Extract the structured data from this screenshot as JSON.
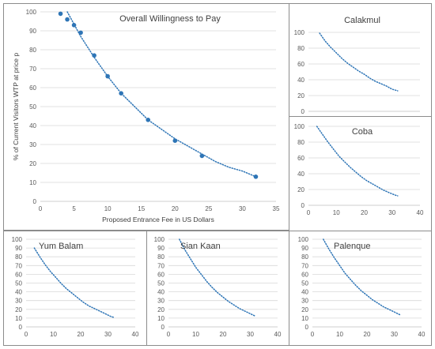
{
  "chart_data": [
    {
      "id": "overall",
      "type": "scatter",
      "title": "Overall Willingness to Pay",
      "xlabel": "Proposed Entrance Fee in US Dollars",
      "ylabel": "% of Current Visitors WTP at price p",
      "xlim": [
        0,
        35
      ],
      "ylim": [
        0,
        100
      ],
      "xticks": [
        0,
        5,
        10,
        15,
        20,
        25,
        30,
        35
      ],
      "yticks": [
        0,
        10,
        20,
        30,
        40,
        50,
        60,
        70,
        80,
        90,
        100
      ],
      "grid": true,
      "x": [
        3,
        4,
        5,
        6,
        8,
        10,
        12,
        16,
        20,
        24,
        32
      ],
      "y": [
        99,
        96,
        93,
        89,
        77,
        66,
        57,
        43,
        32,
        24,
        13
      ],
      "trend": [
        [
          4,
          100
        ],
        [
          6,
          87
        ],
        [
          8,
          76
        ],
        [
          10,
          66
        ],
        [
          12,
          57
        ],
        [
          14,
          50
        ],
        [
          16,
          43
        ],
        [
          18,
          38
        ],
        [
          20,
          33
        ],
        [
          22,
          29
        ],
        [
          24,
          25
        ],
        [
          26,
          21
        ],
        [
          28,
          18
        ],
        [
          30,
          16
        ],
        [
          32,
          13
        ]
      ]
    },
    {
      "id": "calakmul",
      "type": "line",
      "title": "Calakmul",
      "xlim": [
        0,
        40
      ],
      "ylim": [
        0,
        100
      ],
      "xticks": [
        0,
        10,
        20,
        30,
        40
      ],
      "yticks": [
        0,
        20,
        40,
        60,
        80,
        100
      ],
      "grid": true,
      "trend": [
        [
          4,
          99
        ],
        [
          6,
          89
        ],
        [
          8,
          81
        ],
        [
          10,
          74
        ],
        [
          12,
          67
        ],
        [
          14,
          61
        ],
        [
          16,
          56
        ],
        [
          18,
          51
        ],
        [
          20,
          47
        ],
        [
          22,
          42
        ],
        [
          24,
          38
        ],
        [
          26,
          35
        ],
        [
          28,
          32
        ],
        [
          30,
          28
        ],
        [
          32,
          26
        ]
      ]
    },
    {
      "id": "coba",
      "type": "line",
      "title": "Coba",
      "xlim": [
        0,
        40
      ],
      "ylim": [
        0,
        100
      ],
      "xticks": [
        0,
        10,
        20,
        30,
        40
      ],
      "yticks": [
        0,
        20,
        40,
        60,
        80,
        100
      ],
      "grid": true,
      "trend": [
        [
          3,
          100
        ],
        [
          5,
          90
        ],
        [
          7,
          80
        ],
        [
          9,
          71
        ],
        [
          11,
          62
        ],
        [
          13,
          55
        ],
        [
          15,
          48
        ],
        [
          17,
          42
        ],
        [
          19,
          36
        ],
        [
          21,
          31
        ],
        [
          23,
          27
        ],
        [
          25,
          23
        ],
        [
          27,
          19
        ],
        [
          29,
          16
        ],
        [
          31,
          13
        ],
        [
          32,
          12
        ]
      ]
    },
    {
      "id": "yumbalam",
      "type": "line",
      "title": "Yum Balam",
      "xlim": [
        0,
        40
      ],
      "ylim": [
        0,
        100
      ],
      "xticks": [
        0,
        10,
        20,
        30,
        40
      ],
      "yticks": [
        0,
        10,
        20,
        30,
        40,
        50,
        60,
        70,
        80,
        90,
        100
      ],
      "grid": true,
      "trend": [
        [
          3,
          90
        ],
        [
          5,
          80
        ],
        [
          7,
          71
        ],
        [
          9,
          63
        ],
        [
          11,
          56
        ],
        [
          13,
          49
        ],
        [
          15,
          43
        ],
        [
          17,
          38
        ],
        [
          19,
          33
        ],
        [
          21,
          28
        ],
        [
          23,
          24
        ],
        [
          25,
          21
        ],
        [
          27,
          18
        ],
        [
          29,
          15
        ],
        [
          31,
          12
        ],
        [
          32,
          11
        ]
      ]
    },
    {
      "id": "siankaan",
      "type": "line",
      "title": "Sian Kaan",
      "xlim": [
        0,
        40
      ],
      "ylim": [
        0,
        100
      ],
      "xticks": [
        0,
        10,
        20,
        30,
        40
      ],
      "yticks": [
        0,
        10,
        20,
        30,
        40,
        50,
        60,
        70,
        80,
        90,
        100
      ],
      "grid": true,
      "trend": [
        [
          4,
          100
        ],
        [
          6,
          88
        ],
        [
          8,
          78
        ],
        [
          10,
          68
        ],
        [
          12,
          60
        ],
        [
          14,
          52
        ],
        [
          16,
          45
        ],
        [
          18,
          39
        ],
        [
          20,
          34
        ],
        [
          22,
          29
        ],
        [
          24,
          25
        ],
        [
          26,
          21
        ],
        [
          28,
          18
        ],
        [
          30,
          15
        ],
        [
          32,
          12
        ]
      ]
    },
    {
      "id": "palenque",
      "type": "line",
      "title": "Palenque",
      "xlim": [
        0,
        40
      ],
      "ylim": [
        0,
        100
      ],
      "xticks": [
        0,
        10,
        20,
        30,
        40
      ],
      "yticks": [
        0,
        10,
        20,
        30,
        40,
        50,
        60,
        70,
        80,
        90,
        100
      ],
      "grid": true,
      "trend": [
        [
          4,
          100
        ],
        [
          6,
          89
        ],
        [
          8,
          79
        ],
        [
          10,
          70
        ],
        [
          12,
          61
        ],
        [
          14,
          54
        ],
        [
          16,
          47
        ],
        [
          18,
          41
        ],
        [
          20,
          36
        ],
        [
          22,
          31
        ],
        [
          24,
          27
        ],
        [
          26,
          23
        ],
        [
          28,
          20
        ],
        [
          30,
          17
        ],
        [
          32,
          14
        ]
      ]
    }
  ]
}
